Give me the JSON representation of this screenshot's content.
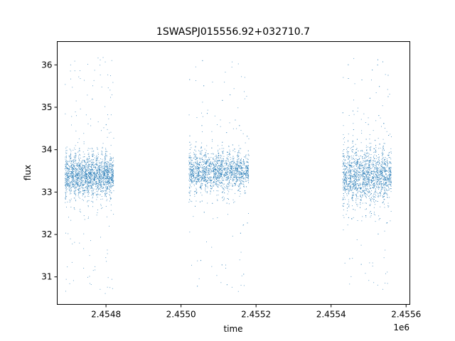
{
  "chart_data": {
    "type": "scatter",
    "title": "1SWASPJ015556.92+032710.7",
    "xlabel": "time",
    "ylabel": "flux",
    "x_offset_label": "1e6",
    "xlim": [
      2.45467,
      2.45561
    ],
    "ylim": [
      30.35,
      36.55
    ],
    "x_ticks": [
      2.4548,
      2.455,
      2.4552,
      2.4554,
      2.4556
    ],
    "x_tick_labels": [
      "2.4548",
      "2.4550",
      "2.4552",
      "2.4554",
      "2.4556"
    ],
    "y_ticks": [
      31,
      32,
      33,
      34,
      35,
      36
    ],
    "y_tick_labels": [
      "31",
      "32",
      "33",
      "34",
      "35",
      "36"
    ],
    "grid": false,
    "marker_color": "#1f77b4",
    "observing_seasons": [
      {
        "x_start": 2.45469,
        "x_end": 2.45482,
        "median_flux": 33.4,
        "core_low": 32.4,
        "core_high": 34.2,
        "outlier_low": 30.6,
        "outlier_high": 36.25
      },
      {
        "x_start": 2.45502,
        "x_end": 2.45518,
        "median_flux": 33.5,
        "core_low": 32.6,
        "core_high": 34.3,
        "outlier_low": 30.65,
        "outlier_high": 36.2
      },
      {
        "x_start": 2.45543,
        "x_end": 2.45556,
        "median_flux": 33.4,
        "core_low": 32.2,
        "core_high": 34.6,
        "outlier_low": 30.7,
        "outlier_high": 36.25
      }
    ]
  }
}
